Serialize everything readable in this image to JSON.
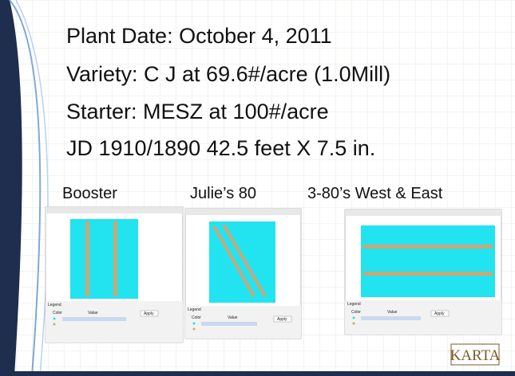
{
  "slide": {
    "lines": [
      "Plant Date:  October 4, 2011",
      "Variety:  C J  at  69.6#/acre (1.0Mill)",
      "Starter:  MESZ at 100#/acre",
      "JD 1910/1890 42.5 feet X 7.5 in."
    ],
    "panels": [
      {
        "label": "Booster",
        "legend": "Legend",
        "color_header": "Color",
        "value_header": "Value",
        "apply": "Apply"
      },
      {
        "label": "Julie’s 80",
        "legend": "Legend",
        "color_header": "Color",
        "value_header": "Value",
        "apply": "Apply"
      },
      {
        "label": "3-80’s West & East",
        "legend": "Legend",
        "color_header": "Color",
        "value_header": "Value",
        "apply": "Apply"
      }
    ],
    "logo": "KARTA"
  }
}
